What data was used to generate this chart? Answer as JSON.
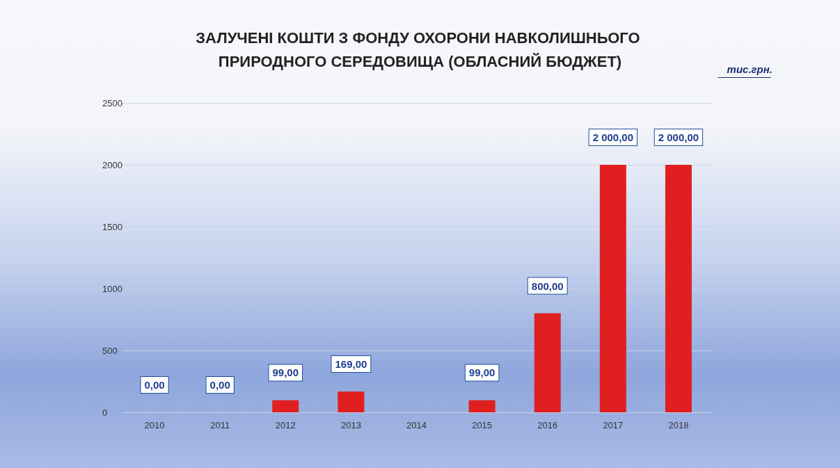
{
  "chart_data": {
    "type": "bar",
    "title": "ЗАЛУЧЕНІ КОШТИ З ФОНДУ ОХОРОНИ НАВКОЛИШНЬОГО ПРИРОДНОГО СЕРЕДОВИЩА (ОБЛАСНИЙ БЮДЖЕТ)",
    "categories": [
      "2010",
      "2011",
      "2012",
      "2013",
      "2014",
      "2015",
      "2016",
      "2017",
      "2018"
    ],
    "values": [
      0,
      0,
      99,
      169,
      null,
      99,
      800,
      2000,
      2000
    ],
    "value_labels": [
      "0,00",
      "0,00",
      "99,00",
      "169,00",
      null,
      "99,00",
      "800,00",
      "2 000,00",
      "2 000,00"
    ],
    "color": "#e02020",
    "ylim": [
      0,
      2500
    ],
    "yticks": [
      0,
      500,
      1000,
      1500,
      2000,
      2500
    ],
    "grid": "y",
    "annotations": [
      "тис.грн."
    ]
  }
}
